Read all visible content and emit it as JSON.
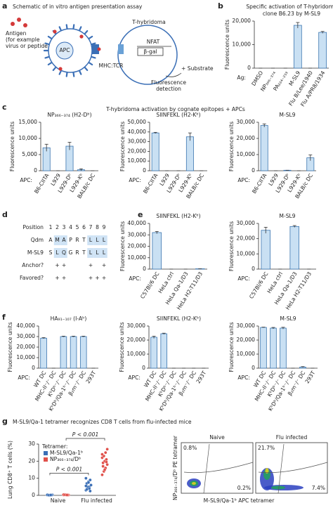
{
  "panel_labels": [
    "a",
    "b",
    "c",
    "d",
    "e",
    "f",
    "g"
  ],
  "section_titles": {
    "c": "T-hybridoma activation by cognate epitopes + APCs",
    "g": "M-SL9/Qa-1 tetramer recognizes CD8 T cells from flu-infected mice"
  },
  "schematic": {
    "title": "Schematic of in vitro antigen presentation assay",
    "antigen": [
      "Antigen",
      "(for example",
      "virus or peptide)"
    ],
    "apc": "APC",
    "hybridoma": "T-hybridoma",
    "nfat": "NFAT",
    "bgal": "β-gal",
    "mhc": "MHC:TCR",
    "substrate": "+ Substrate",
    "detection": [
      "Fluorescence",
      "detection"
    ]
  },
  "sequence_table": {
    "position_label": "Position",
    "positions": [
      1,
      2,
      3,
      4,
      5,
      6,
      7,
      8,
      9
    ],
    "rows": [
      {
        "label": "Qdm",
        "residues": [
          "A",
          "M",
          "A",
          "P",
          "R",
          "T",
          "L",
          "L",
          "L"
        ]
      },
      {
        "label": "M-SL9",
        "residues": [
          "S",
          "L",
          "Q",
          "G",
          "R",
          "T",
          "L",
          "L",
          "L"
        ]
      }
    ],
    "highlight_positions": [
      2,
      3,
      7,
      8,
      9
    ],
    "symbol": "+",
    "flags": [
      {
        "label": "Anchor?",
        "positions": [
          2,
          3,
          7,
          9
        ]
      },
      {
        "label": "Favored?",
        "positions": [
          2,
          3,
          7,
          8,
          9
        ]
      }
    ]
  },
  "flow_plots": {
    "ylabel": "NP₃₆₆₋₃₇₄/Dᵇ PE tetramer",
    "xlabel": "M-SL9/Qa-1ᵇ APC tetramer",
    "panels": [
      {
        "title": "Naive",
        "upper_left": "0.8%",
        "lower_right": "0.2%"
      },
      {
        "title": "Flu infected",
        "upper_left": "21.7%",
        "lower_right": "7.4%"
      }
    ]
  },
  "chart_data": [
    {
      "type": "bar",
      "title": [
        "Specific activation of T-hybridoma",
        "clone B6.23 by M-SL9"
      ],
      "ylabel": "Fluorescence units",
      "category_label": "Ag:",
      "categories": [
        "DMSO",
        "NP₃₆₆₋₃₇₄",
        "PA₂₂₄₋₂₃₃",
        "M-SL9",
        "Flu B/Lee/1940",
        "Flu A/PR8/1934"
      ],
      "values": [
        0,
        0,
        0,
        18200,
        0,
        15200
      ],
      "errors": [
        0,
        0,
        0,
        1200,
        0,
        400
      ],
      "color": "#c9e0f3",
      "edge": "#3d76b0",
      "ylim": [
        0,
        20000
      ],
      "yticks": [
        0,
        {
          "value": 10000,
          "label": "10,000"
        },
        {
          "value": 20000,
          "label": "20,000"
        }
      ]
    },
    {
      "type": "bar",
      "title": [
        "NP₃₆₆₋₃₇₄ (H2-Dᵇ)"
      ],
      "ylabel": "Fluorescence units",
      "category_label": "APC:",
      "categories": [
        "B6-CIITA",
        "L929",
        "L929-Dᵇ",
        "L929-Kᵇ",
        "BALB/c DC"
      ],
      "values": [
        7100,
        0,
        7600,
        300,
        0
      ],
      "errors": [
        1100,
        0,
        1200,
        300,
        0
      ],
      "color": "#c9e0f3",
      "edge": "#3d76b0",
      "ylim": [
        0,
        15000
      ],
      "yticks": [
        0,
        {
          "value": 5000,
          "label": "5,000"
        },
        {
          "value": 10000,
          "label": "10,000"
        },
        {
          "value": 15000,
          "label": "15,000"
        }
      ]
    },
    {
      "type": "bar",
      "title": [
        "SIINFEKL (H2-Kᵇ)"
      ],
      "ylabel": "Fluorescence units",
      "category_label": "APC:",
      "categories": [
        "B6-CIITA",
        "L929",
        "L929-Dᵇ",
        "L929-Kᵇ",
        "BALB/c DC"
      ],
      "values": [
        39000,
        0,
        0,
        35000,
        0
      ],
      "errors": [
        600,
        0,
        0,
        4000,
        0
      ],
      "color": "#c9e0f3",
      "edge": "#3d76b0",
      "ylim": [
        0,
        50000
      ],
      "yticks": [
        0,
        {
          "value": 10000,
          "label": "10,000"
        },
        {
          "value": 20000,
          "label": "20,000"
        },
        {
          "value": 30000,
          "label": "30,000"
        },
        {
          "value": 40000,
          "label": "40,000"
        },
        {
          "value": 50000,
          "label": "50,000"
        }
      ]
    },
    {
      "type": "bar",
      "title": [
        "M-SL9"
      ],
      "ylabel": "Fluorescence units",
      "category_label": "APC:",
      "categories": [
        "B6-CIITA",
        "L929",
        "L929-Dᵇ",
        "L929-Kᵇ",
        "BALB/c DC"
      ],
      "values": [
        28000,
        0,
        300,
        0,
        8000
      ],
      "errors": [
        1000,
        0,
        0,
        0,
        1800
      ],
      "color": "#c9e0f3",
      "edge": "#3d76b0",
      "ylim": [
        0,
        30000
      ],
      "yticks": [
        0,
        {
          "value": 10000,
          "label": "10,000"
        },
        {
          "value": 20000,
          "label": "20,000"
        },
        {
          "value": 30000,
          "label": "30,000"
        }
      ]
    },
    {
      "type": "bar",
      "title": [
        "SIINFEKL (H2-Kᵇ)"
      ],
      "ylabel": "Fluorescence units",
      "category_label": "APC:",
      "categories": [
        "C57Bl/6 DC",
        "HeLa ctrl",
        "HeLa Qa-1/D3",
        "HeLa H2-T11/D3"
      ],
      "values": [
        32000,
        0,
        0,
        300
      ],
      "errors": [
        1000,
        0,
        0,
        0
      ],
      "color": "#c9e0f3",
      "edge": "#3d76b0",
      "ylim": [
        0,
        40000
      ],
      "yticks": [
        0,
        {
          "value": 10000,
          "label": "10,000"
        },
        {
          "value": 20000,
          "label": "20,000"
        },
        {
          "value": 30000,
          "label": "30,000"
        },
        {
          "value": 40000,
          "label": "40,000"
        }
      ]
    },
    {
      "type": "bar",
      "title": [
        "M-SL9"
      ],
      "ylabel": "Fluorescence units",
      "category_label": "APC:",
      "categories": [
        "C57Bl/6 DC",
        "HeLa ctrl",
        "HeLa Qa-1/D3",
        "HeLa H2-T11/D3"
      ],
      "values": [
        25500,
        0,
        28000,
        0
      ],
      "errors": [
        2000,
        0,
        600,
        0
      ],
      "color": "#c9e0f3",
      "edge": "#3d76b0",
      "ylim": [
        0,
        30000
      ],
      "yticks": [
        0,
        {
          "value": 10000,
          "label": "10,000"
        },
        {
          "value": 20000,
          "label": "20,000"
        },
        {
          "value": 30000,
          "label": "30,000"
        }
      ]
    },
    {
      "type": "bar",
      "title": [
        "HA₉₁₋₁₀₇ (I-Aᵇ)"
      ],
      "ylabel": "Fluorescence units",
      "category_label": "APC:",
      "categories": [
        "WT DC",
        "MHC-II⁻/⁻ DC",
        "KᵇDᵇ⁻/⁻ DC",
        "KᵇDᵇ/Qa-1ᵇ⁻/⁻ DC",
        "β₂m⁻/⁻ DC",
        "293T"
      ],
      "values": [
        28500,
        0,
        30000,
        30000,
        30000,
        0
      ],
      "errors": [
        500,
        0,
        400,
        400,
        400,
        0
      ],
      "color": "#c9e0f3",
      "edge": "#3d76b0",
      "ylim": [
        0,
        40000
      ],
      "yticks": [
        0,
        {
          "value": 10000,
          "label": "10,000"
        },
        {
          "value": 20000,
          "label": "20,000"
        },
        {
          "value": 30000,
          "label": "30,000"
        },
        {
          "value": 40000,
          "label": "40,000"
        }
      ]
    },
    {
      "type": "bar",
      "title": [
        "SIINFEKL (H2-Kᵇ)"
      ],
      "ylabel": "Fluorescence units",
      "category_label": "APC:",
      "categories": [
        "WT DC",
        "MHC-II⁻/⁻ DC",
        "KᵇDᵇ⁻/⁻ DC",
        "KᵇDᵇ/Qa-1ᵇ⁻/⁻ DC",
        "β₂m⁻/⁻ DC",
        "293T"
      ],
      "values": [
        22000,
        24500,
        0,
        0,
        0,
        0
      ],
      "errors": [
        800,
        400,
        0,
        0,
        0,
        0
      ],
      "color": "#c9e0f3",
      "edge": "#3d76b0",
      "ylim": [
        0,
        30000
      ],
      "yticks": [
        0,
        {
          "value": 10000,
          "label": "10,000"
        },
        {
          "value": 20000,
          "label": "20,000"
        },
        {
          "value": 30000,
          "label": "30,000"
        }
      ]
    },
    {
      "type": "bar",
      "title": [
        "M-SL9"
      ],
      "ylabel": "Fluorescence units",
      "category_label": "APC:",
      "categories": [
        "WT DC",
        "MHC-II⁻/⁻ DC",
        "KᵇDᵇ⁻/⁻ DC",
        "KᵇDᵇ/Qa-1ᵇ⁻/⁻ DC",
        "β₂m⁻/⁻ DC",
        "293T"
      ],
      "values": [
        29000,
        28500,
        28500,
        0,
        800,
        0
      ],
      "errors": [
        200,
        500,
        600,
        0,
        300,
        0
      ],
      "color": "#c9e0f3",
      "edge": "#3d76b0",
      "ylim": [
        0,
        30000
      ],
      "yticks": [
        0,
        {
          "value": 10000,
          "label": "10,000"
        },
        {
          "value": 20000,
          "label": "20,000"
        },
        {
          "value": 30000,
          "label": "30,000"
        }
      ]
    },
    {
      "type": "dot",
      "ylabel": "Lung CD8⁺ T cells (%)",
      "categories": [
        "Naive",
        "Flu infected"
      ],
      "legend_title": "Tetramer:",
      "series": [
        {
          "name": "M-SL9/Qa-1ᵇ",
          "color": "#3b6fb6",
          "values": [
            [
              0.1,
              0.2,
              0.1,
              0.3,
              0.2,
              0.1,
              0.2,
              0.3,
              0.1,
              0.2
            ],
            [
              3,
              4,
              5,
              6,
              7,
              8,
              9,
              10,
              5,
              4,
              6,
              3.5,
              7.5,
              2.5,
              5.5
            ]
          ]
        },
        {
          "name": "NP₃₆₆₋₃₇₄/Dᵇ",
          "color": "#e0504a",
          "values": [
            [
              0.2,
              0.3,
              0.4,
              0.2,
              0.5,
              0.3,
              0.2,
              0.4,
              0.3,
              0.2
            ],
            [
              12,
              14,
              16,
              18,
              19,
              20,
              21,
              22,
              23,
              25,
              27,
              17,
              15,
              19.5,
              24
            ]
          ]
        }
      ],
      "annotations": [
        "P < 0.001",
        "P < 0.001"
      ],
      "ylim": [
        0,
        30
      ],
      "yticks": [
        0,
        10,
        20,
        30
      ]
    }
  ]
}
